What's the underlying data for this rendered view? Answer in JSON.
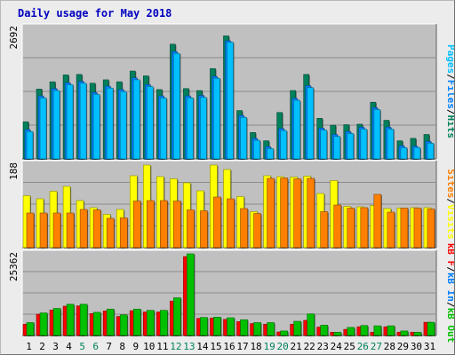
{
  "chart_data": {
    "type": "bar",
    "title": "Daily usage for May 2018",
    "categories": [
      "1",
      "2",
      "3",
      "4",
      "5",
      "6",
      "7",
      "8",
      "9",
      "10",
      "11",
      "12",
      "13",
      "14",
      "15",
      "16",
      "17",
      "18",
      "19",
      "20",
      "21",
      "22",
      "23",
      "24",
      "25",
      "26",
      "27",
      "28",
      "29",
      "30",
      "31"
    ],
    "weekend_days": [
      "5",
      "6",
      "12",
      "13",
      "19",
      "20",
      "26",
      "27"
    ],
    "panels": [
      {
        "id": "hits-files-pages",
        "ymax_label": "2692",
        "ymax": 2692,
        "axis_label_parts": [
          "Pages",
          "Files",
          "Hits"
        ],
        "axis_label_colors": [
          "#00c0ff",
          "#0080ff",
          "#00805c"
        ],
        "series": [
          {
            "name": "Hits",
            "color": "#00805c",
            "values": [
              760,
              1430,
              1580,
              1720,
              1730,
              1550,
              1620,
              1580,
              1800,
              1700,
              1420,
              2350,
              1440,
              1400,
              1850,
              2520,
              990,
              540,
              370,
              950,
              1400,
              1730,
              830,
              690,
              700,
              710,
              1160,
              790,
              370,
              420,
              500
            ]
          },
          {
            "name": "Files",
            "color": "#0080ff",
            "values": [
              600,
              1290,
              1440,
              1560,
              1590,
              1360,
              1490,
              1420,
              1660,
              1520,
              1290,
              2200,
              1290,
              1300,
              1690,
              2420,
              890,
              420,
              250,
              620,
              1240,
              1500,
              630,
              500,
              560,
              650,
              1050,
              650,
              270,
              260,
              360
            ]
          },
          {
            "name": "Pages",
            "color": "#00c0ff",
            "values": [
              560,
              1250,
              1400,
              1520,
              1550,
              1320,
              1450,
              1380,
              1620,
              1480,
              1250,
              2160,
              1250,
              1260,
              1650,
              2390,
              850,
              380,
              210,
              580,
              1200,
              1460,
              590,
              460,
              520,
              610,
              1010,
              610,
              230,
              230,
              320
            ]
          }
        ]
      },
      {
        "id": "visits-sites",
        "ymax_label": "188",
        "ymax": 188,
        "axis_label_parts": [
          "Sites",
          "Visits"
        ],
        "axis_label_colors": [
          "#ff8000",
          "#ffff00"
        ],
        "series": [
          {
            "name": "Visits",
            "color": "#ffff00",
            "values": [
              117,
              110,
              127,
              138,
              106,
              90,
              75,
              86,
              162,
              186,
              160,
              155,
              146,
              128,
              186,
              176,
              115,
              81,
              162,
              160,
              159,
              161,
              122,
              151,
              93,
              92,
              95,
              88,
              89,
              90,
              90
            ]
          },
          {
            "name": "Sites",
            "color": "#ff8000",
            "values": [
              78,
              78,
              78,
              78,
              86,
              85,
              66,
              67,
              105,
              106,
              106,
              105,
              85,
              83,
              114,
              110,
              88,
              77,
              156,
              157,
              155,
              156,
              81,
              96,
              89,
              90,
              120,
              80,
              89,
              89,
              87
            ]
          }
        ]
      },
      {
        "id": "kbytes",
        "ymax_label": "25362",
        "ymax": 25362,
        "axis_label_parts": [
          "kB F",
          "kB In",
          "kB Out"
        ],
        "axis_label_colors": [
          "#ff0000",
          "#0080ff",
          "#00c000"
        ],
        "series": [
          {
            "name": "kB F",
            "color": "#ff0000",
            "values": [
              3500,
              6600,
              7900,
              9100,
              9200,
              6800,
              7600,
              5900,
              7700,
              7300,
              7300,
              10700,
              24500,
              5300,
              5400,
              5000,
              4300,
              3700,
              3500,
              1100,
              3500,
              4700,
              2600,
              1000,
              1900,
              2700,
              1000,
              2700,
              1000,
              1000,
              4100
            ]
          },
          {
            "name": "kB Out",
            "color": "#00c000",
            "values": [
              4000,
              7000,
              8400,
              9700,
              9700,
              7200,
              8200,
              6400,
              8200,
              7800,
              7800,
              11700,
              25362,
              5600,
              5700,
              5500,
              4900,
              4000,
              4000,
              1400,
              4400,
              6700,
              3200,
              1000,
              2500,
              3100,
              3000,
              3000,
              1400,
              1000,
              4100
            ]
          }
        ]
      }
    ]
  }
}
